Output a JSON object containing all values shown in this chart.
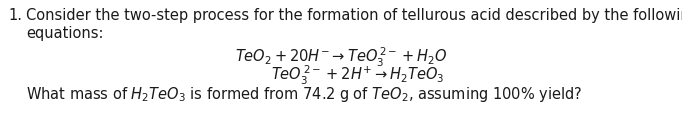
{
  "background_color": "#ffffff",
  "text_color": "#1a1a1a",
  "font_size": 10.5,
  "eq_font_size": 10.5,
  "line1_num": "1.",
  "line1_text": "Consider the two-step process for the formation of tellurous acid described by the following",
  "line2_text": "equations:",
  "eq1": "$\\mathit{TeO_2 + 20H^{-} \\rightarrow TeO_3^{\\,2-} + H_2O}$",
  "eq2": "$\\mathit{TeO_3^{\\,2-} + 2H^{+} \\rightarrow H_2TeO_3}$",
  "question": "What mass of $\\mathit{H_2TeO_3}$ is formed from 74.2 g of $\\mathit{TeO_2}$, assuming 100% yield?",
  "figwidth": 6.82,
  "figheight": 1.25,
  "dpi": 100
}
